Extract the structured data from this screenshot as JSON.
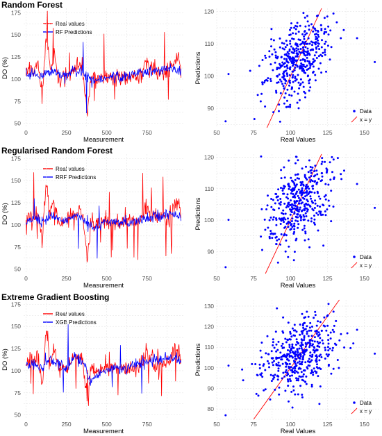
{
  "panels": [
    {
      "title": "Random Forest",
      "series_names": [
        "Real values",
        "RF Predictions"
      ]
    },
    {
      "title": "Regularised Random Forest",
      "series_names": [
        "Real values",
        "RRF Predictions"
      ]
    },
    {
      "title": "Extreme Gradient Boosting",
      "series_names": [
        "Real values",
        "XGB Predictions"
      ]
    }
  ],
  "colors": {
    "real": "#ff0000",
    "pred": "#0000ff",
    "grid": "#e5e5e5"
  },
  "chart_data": [
    {
      "type": "line",
      "title": "Random Forest",
      "xlabel": "Measurement",
      "ylabel": "DO (%)",
      "xlim": [
        -15,
        975
      ],
      "ylim": [
        45,
        180
      ],
      "xticks": [
        0,
        250,
        500,
        750,
        1000
      ],
      "yticks": [
        50,
        75,
        100,
        125,
        150,
        175
      ],
      "series": [
        {
          "name": "Real values",
          "color": "#ff0000",
          "x": [
            0,
            25,
            50,
            75,
            100,
            125,
            150,
            175,
            200,
            250,
            300,
            350,
            380,
            400,
            450,
            500,
            550,
            600,
            650,
            700,
            750,
            800,
            850,
            900,
            925,
            950,
            960
          ],
          "y": [
            105,
            112,
            108,
            118,
            80,
            150,
            110,
            130,
            100,
            105,
            112,
            115,
            60,
            102,
            100,
            104,
            103,
            101,
            103,
            104,
            118,
            110,
            105,
            112,
            125,
            122,
            108
          ]
        },
        {
          "name": "RF Predictions",
          "color": "#0000ff",
          "x": [
            0,
            50,
            100,
            150,
            200,
            250,
            300,
            350,
            400,
            450,
            500,
            550,
            600,
            650,
            700,
            750,
            800,
            850,
            900,
            950,
            960
          ],
          "y": [
            105,
            107,
            104,
            108,
            106,
            104,
            110,
            108,
            98,
            99,
            102,
            103,
            102,
            104,
            106,
            108,
            109,
            110,
            112,
            110,
            109
          ]
        }
      ]
    },
    {
      "type": "scatter",
      "title": "Random Forest",
      "xlabel": "Real Values",
      "ylabel": "Predictions",
      "xlim": [
        50,
        160
      ],
      "ylim": [
        84,
        121
      ],
      "xticks": [
        50,
        75,
        100,
        125,
        150
      ],
      "yticks": [
        90,
        100,
        110,
        120
      ],
      "legend": "bottom-right",
      "series": [
        {
          "name": "Data",
          "color": "#0000ff",
          "cx": 106,
          "cy": 106,
          "sx": 11,
          "sy": 6,
          "n": 420
        }
      ],
      "line": {
        "name": "x = y",
        "x": [
          84,
          121
        ],
        "y": [
          84,
          121
        ]
      }
    },
    {
      "type": "line",
      "title": "Regularised Random Forest",
      "xlabel": "Measurement",
      "ylabel": "DO (%)",
      "xlim": [
        -15,
        975
      ],
      "ylim": [
        45,
        180
      ],
      "xticks": [
        0,
        250,
        500,
        750,
        1000
      ],
      "yticks": [
        50,
        75,
        100,
        125,
        150,
        175
      ],
      "series": [
        {
          "name": "Real values",
          "color": "#ff0000",
          "x": [
            0,
            25,
            50,
            75,
            100,
            125,
            150,
            175,
            200,
            250,
            300,
            350,
            380,
            400,
            450,
            500,
            550,
            600,
            650,
            700,
            750,
            800,
            850,
            900,
            925,
            950,
            960
          ],
          "y": [
            105,
            112,
            108,
            118,
            80,
            150,
            110,
            130,
            100,
            105,
            112,
            115,
            60,
            102,
            100,
            104,
            103,
            101,
            103,
            104,
            118,
            110,
            105,
            112,
            125,
            122,
            108
          ]
        },
        {
          "name": "RRF Predictions",
          "color": "#0000ff",
          "x": [
            0,
            50,
            100,
            150,
            200,
            250,
            300,
            350,
            400,
            450,
            500,
            550,
            600,
            650,
            700,
            750,
            800,
            850,
            900,
            950,
            960
          ],
          "y": [
            105,
            108,
            104,
            109,
            107,
            104,
            111,
            108,
            97,
            99,
            102,
            103,
            102,
            104,
            106,
            108,
            110,
            111,
            113,
            111,
            110
          ]
        }
      ]
    },
    {
      "type": "scatter",
      "title": "Regularised Random Forest",
      "xlabel": "Real Values",
      "ylabel": "Predictions",
      "xlim": [
        50,
        160
      ],
      "ylim": [
        83,
        121
      ],
      "xticks": [
        50,
        75,
        100,
        125,
        150
      ],
      "yticks": [
        90,
        100,
        110,
        120
      ],
      "legend": "bottom-right",
      "series": [
        {
          "name": "Data",
          "color": "#0000ff",
          "cx": 106,
          "cy": 106,
          "sx": 11,
          "sy": 6.5,
          "n": 420
        }
      ],
      "line": {
        "name": "x = y",
        "x": [
          83,
          121
        ],
        "y": [
          83,
          121
        ]
      }
    },
    {
      "type": "line",
      "title": "Extreme Gradient Boosting",
      "xlabel": "Measurement",
      "ylabel": "DO (%)",
      "xlim": [
        -15,
        975
      ],
      "ylim": [
        45,
        180
      ],
      "xticks": [
        0,
        250,
        500,
        750,
        1000
      ],
      "yticks": [
        50,
        75,
        100,
        125,
        150,
        175
      ],
      "series": [
        {
          "name": "Real values",
          "color": "#ff0000",
          "x": [
            0,
            25,
            50,
            75,
            100,
            125,
            150,
            175,
            200,
            250,
            300,
            350,
            380,
            400,
            450,
            500,
            550,
            600,
            650,
            700,
            750,
            800,
            850,
            900,
            925,
            950,
            960
          ],
          "y": [
            105,
            112,
            108,
            118,
            80,
            150,
            110,
            130,
            100,
            105,
            112,
            115,
            60,
            102,
            100,
            104,
            103,
            101,
            103,
            104,
            118,
            110,
            105,
            112,
            125,
            122,
            108
          ]
        },
        {
          "name": "XGB Predictions",
          "color": "#0000ff",
          "x": [
            0,
            50,
            100,
            150,
            200,
            250,
            300,
            350,
            400,
            450,
            500,
            550,
            600,
            650,
            700,
            750,
            800,
            850,
            900,
            950,
            960
          ],
          "y": [
            104,
            110,
            100,
            115,
            108,
            102,
            114,
            110,
            88,
            96,
            101,
            104,
            100,
            105,
            107,
            110,
            112,
            113,
            116,
            112,
            109
          ]
        }
      ]
    },
    {
      "type": "scatter",
      "title": "Extreme Gradient Boosting",
      "xlabel": "Real Values",
      "ylabel": "Predictions",
      "xlim": [
        50,
        160
      ],
      "ylim": [
        75,
        133
      ],
      "xticks": [
        50,
        75,
        100,
        125,
        150
      ],
      "yticks": [
        80,
        90,
        100,
        110,
        120,
        130
      ],
      "legend": "bottom-right",
      "series": [
        {
          "name": "Data",
          "color": "#0000ff",
          "cx": 106,
          "cy": 106,
          "sx": 12,
          "sy": 8,
          "n": 450
        }
      ],
      "line": {
        "name": "x = y",
        "x": [
          75,
          133
        ],
        "y": [
          75,
          133
        ]
      }
    }
  ]
}
